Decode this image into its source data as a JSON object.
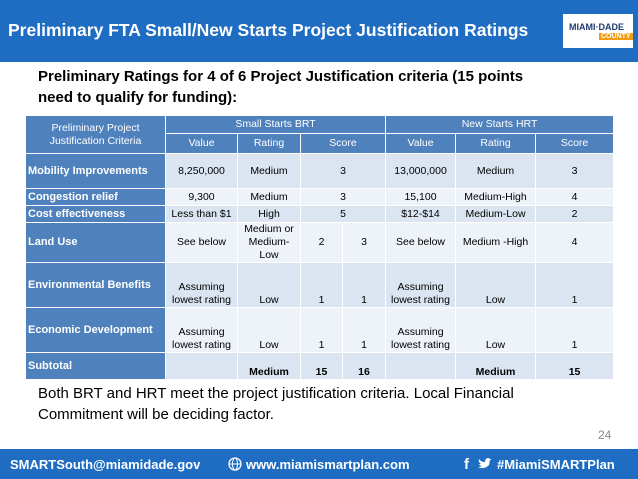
{
  "header": {
    "title": "Preliminary FTA Small/New Starts Project Justification Ratings",
    "logo": [
      "MIAMI·DADE",
      "COUNTY"
    ]
  },
  "intro": "Preliminary Ratings for 4 of 6 Project Justification criteria (15 points need to qualify for funding):",
  "table": {
    "header": [
      [
        "Preliminary Project Justification Criteria",
        "Small Starts BRT",
        "New Starts HRT"
      ],
      [
        "Value",
        "Rating",
        "Score",
        "Value",
        "Rating",
        "Score"
      ]
    ],
    "rows": [
      [
        "Mobility Improvements",
        "8,250,000",
        "Medium",
        "3",
        "13,000,000",
        "Medium",
        "3"
      ],
      [
        "Congestion relief",
        "9,300",
        "Medium",
        "3",
        "15,100",
        "Medium-High",
        "4"
      ],
      [
        "Cost effectiveness",
        "Less than $1",
        "High",
        "5",
        "$12-$14",
        "Medium-Low",
        "2"
      ],
      [
        "Land Use",
        "See below",
        "Medium or Medium-Low",
        "2",
        "3",
        "See below",
        "Medium -High",
        "4"
      ],
      [
        "Environmental Benefits",
        "Assuming lowest rating",
        "Low",
        "1",
        "1",
        "Assuming lowest rating",
        "Low",
        "1"
      ],
      [
        "Economic Development",
        "Assuming lowest rating",
        "Low",
        "1",
        "1",
        "Assuming lowest rating",
        "Low",
        "1"
      ],
      [
        "Subtotal",
        null,
        "Medium",
        "15",
        "16",
        null,
        "Medium",
        "15"
      ]
    ]
  },
  "conclusion": "Both BRT and HRT meet the project justification criteria. Local Financial Commitment will be deciding factor.",
  "page_number": "24",
  "footer": {
    "email": "SMARTSouth@miamidade.gov",
    "website": "www.miamismartplan.com",
    "hashtag": "#MiamiSMARTPlan"
  }
}
